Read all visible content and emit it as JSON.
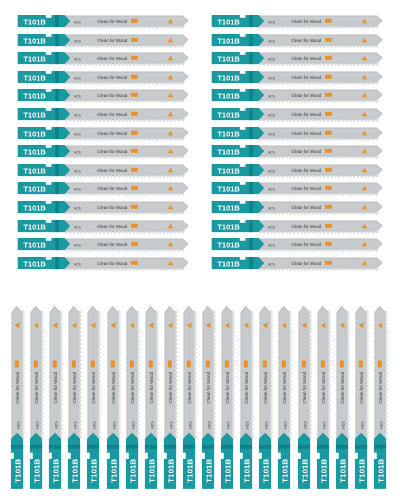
{
  "product": {
    "blade_code": "T101B",
    "blade_text": "Clean for Wood",
    "blade_material": "HCS",
    "blade_badge": "icon",
    "colors": {
      "shank": "#1a9aa0",
      "shank_dark": "#12828a",
      "blade": "#c7cbcd",
      "blade_edge": "#9aa0a3",
      "teeth": "#e9ecee",
      "accent": "#e8912a",
      "background": "#ffffff"
    }
  },
  "layout_groups": {
    "horizontal_left_count": 14,
    "horizontal_right_count": 14,
    "vertical_count": 20
  }
}
